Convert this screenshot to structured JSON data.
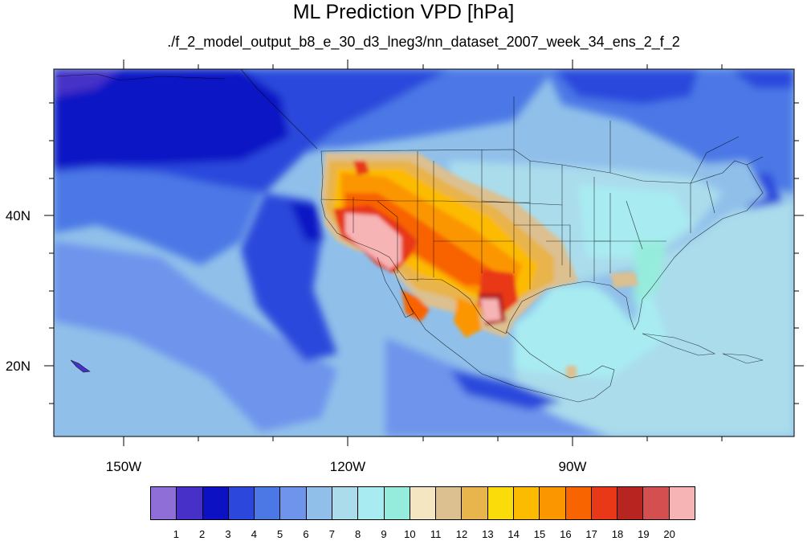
{
  "title": "ML Prediction VPD [hPa]",
  "subtitle": "./f_2_model_output_b8_e_30_d3_lneg3/nn_dataset_2007_week_34_ens_2_f_2",
  "map": {
    "projection": "cylindrical equidistant",
    "lon_range": [
      -160,
      -60
    ],
    "lat_range": [
      11,
      60
    ],
    "lon_ticks": [
      {
        "lon": -150,
        "label": "150W"
      },
      {
        "lon": -120,
        "label": "120W"
      },
      {
        "lon": -90,
        "label": "90W"
      }
    ],
    "lat_ticks": [
      {
        "lat": 40,
        "label": "40N"
      },
      {
        "lat": 20,
        "label": "20N"
      }
    ],
    "variable": "VPD",
    "units": "hPa"
  },
  "colorbar": {
    "levels": [
      "1",
      "2",
      "3",
      "4",
      "5",
      "6",
      "7",
      "8",
      "9",
      "10",
      "11",
      "12",
      "13",
      "14",
      "15",
      "16",
      "17",
      "18",
      "19",
      "20"
    ],
    "colors": [
      "#8f6ed8",
      "#4630c8",
      "#0c12c4",
      "#2c48dc",
      "#4c78e6",
      "#6e94ec",
      "#90c0ea",
      "#aadcec",
      "#a8ecf2",
      "#96ecdc",
      "#f4e6c0",
      "#dcc090",
      "#e8b44c",
      "#fadc0a",
      "#fcba00",
      "#fc9600",
      "#f86400",
      "#e83818",
      "#b82420",
      "#d45050",
      "#f6b4b4"
    ]
  }
}
